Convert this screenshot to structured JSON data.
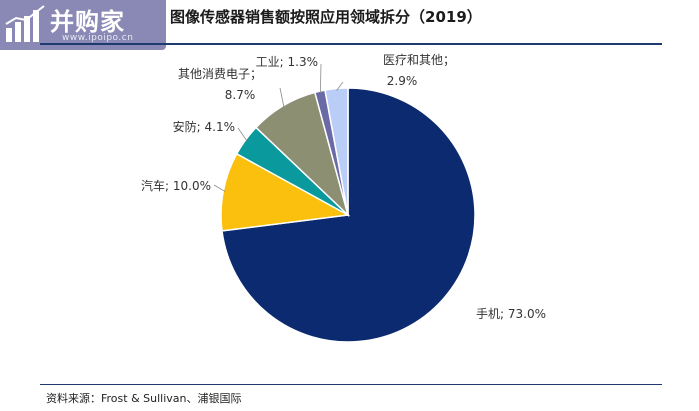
{
  "watermark": {
    "brand": "并购家",
    "url": "www.ipoipo.cn"
  },
  "title": "图像传感器销售额按照应用领域拆分（2019）",
  "source": "资料来源：Frost & Sullivan、浦银国际",
  "chart_data": {
    "type": "pie",
    "start_angle_deg": 0,
    "direction": "clockwise",
    "slices": [
      {
        "category": "手机",
        "value": 73.0,
        "label": "73.0%",
        "color": "#0b2a6f"
      },
      {
        "category": "汽车",
        "value": 10.0,
        "label": "10.0%",
        "color": "#fbbf0e"
      },
      {
        "category": "安防",
        "value": 4.1,
        "label": "4.1%",
        "color": "#0a9a9d"
      },
      {
        "category": "其他消费电子",
        "value": 8.7,
        "label": "8.7%",
        "color": "#8c8f72"
      },
      {
        "category": "工业",
        "value": 1.3,
        "label": "1.3%",
        "color": "#6a6aa6"
      },
      {
        "category": "医疗和其他",
        "value": 2.9,
        "label": "2.9%",
        "color": "#b9cdf6"
      }
    ]
  }
}
